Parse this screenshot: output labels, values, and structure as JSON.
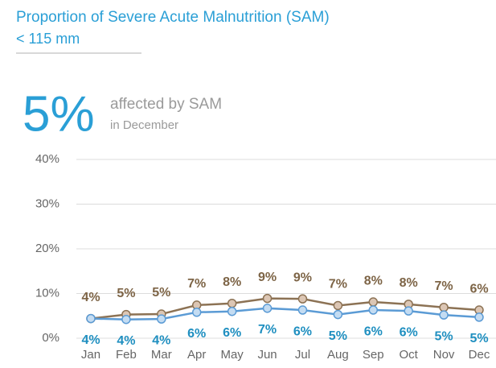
{
  "chart_data": {
    "type": "line",
    "title": "Proportion of Severe Acute Malnutrition (SAM)",
    "subtitle": "< 115 mm",
    "kpi": {
      "value": 5,
      "label": "5%",
      "text": "affected by SAM",
      "period": "in December"
    },
    "categories": [
      "Jan",
      "Feb",
      "Mar",
      "Apr",
      "May",
      "Jun",
      "Jul",
      "Aug",
      "Sep",
      "Oct",
      "Nov",
      "Dec"
    ],
    "series": [
      {
        "color": "#8c7254",
        "marker_color": "#dcc6b4",
        "label_color": "#7d6446",
        "values": [
          4.4,
          5.3,
          5.4,
          7.4,
          7.8,
          8.9,
          8.8,
          7.3,
          8.1,
          7.6,
          6.9,
          6.3
        ],
        "value_labels": [
          "4%",
          "5%",
          "5%",
          "7%",
          "8%",
          "9%",
          "9%",
          "7%",
          "8%",
          "8%",
          "7%",
          "6%"
        ]
      },
      {
        "color": "#5b9bd5",
        "marker_color": "#c4dcf2",
        "label_color": "#1f8fc0",
        "values": [
          4.4,
          4.2,
          4.3,
          5.8,
          6.0,
          6.7,
          6.3,
          5.3,
          6.3,
          6.1,
          5.2,
          4.7
        ],
        "value_labels": [
          "4%",
          "4%",
          "4%",
          "6%",
          "6%",
          "7%",
          "6%",
          "5%",
          "6%",
          "6%",
          "5%",
          "5%"
        ]
      }
    ],
    "ylim": [
      0,
      40
    ],
    "yticks": [
      {
        "value": 0,
        "label": "0%"
      },
      {
        "value": 10,
        "label": "10%"
      },
      {
        "value": 20,
        "label": "20%"
      },
      {
        "value": 30,
        "label": "30%"
      },
      {
        "value": 40,
        "label": "40%"
      }
    ],
    "grid": true
  }
}
